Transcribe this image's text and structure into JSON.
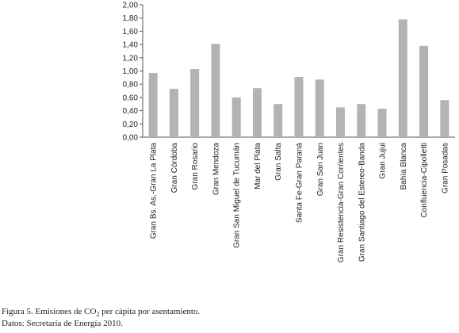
{
  "chart_data": {
    "type": "bar",
    "categories": [
      "Gran Bs. As.-Gran La Plata",
      "Gran Córdoba",
      "Gran Rosario",
      "Gran Mendoza",
      "Gran San Miguel de Tucumán",
      "Mar del Plata",
      "Gran Salta",
      "Santa Fe-Gran Paraná",
      "Gran San Juan",
      "Gran Resistencia-Gran Corrientes",
      "Gran Santiago del Estereo-Banda",
      "Gran Jujui",
      "Bahía Blanca",
      "Confluencia-Cipolletti",
      "Gran Posadas"
    ],
    "values": [
      0.97,
      0.73,
      1.03,
      1.41,
      0.6,
      0.74,
      0.5,
      0.91,
      0.87,
      0.45,
      0.5,
      0.43,
      1.78,
      1.38,
      0.56
    ],
    "color": "#b3b3b3",
    "ylim": [
      0,
      2
    ],
    "yticks": [
      {
        "value": 0,
        "label": "0,00"
      },
      {
        "value": 0.2,
        "label": "0,20"
      },
      {
        "value": 0.4,
        "label": "0,40"
      },
      {
        "value": 0.6,
        "label": "0,60"
      },
      {
        "value": 0.8,
        "label": "0,80"
      },
      {
        "value": 1.0,
        "label": "1,00"
      },
      {
        "value": 1.2,
        "label": "1,20"
      },
      {
        "value": 1.4,
        "label": "1,40"
      },
      {
        "value": 1.6,
        "label": "1,60"
      },
      {
        "value": 1.8,
        "label": "1,80"
      },
      {
        "value": 2.0,
        "label": "2,00"
      }
    ],
    "grid": false,
    "caption_parts": [
      "Figura 5. Emisiones de CO",
      "2",
      " per cápita por asentamiento."
    ],
    "source": "Datos: Secretaría de Energía 2010."
  }
}
